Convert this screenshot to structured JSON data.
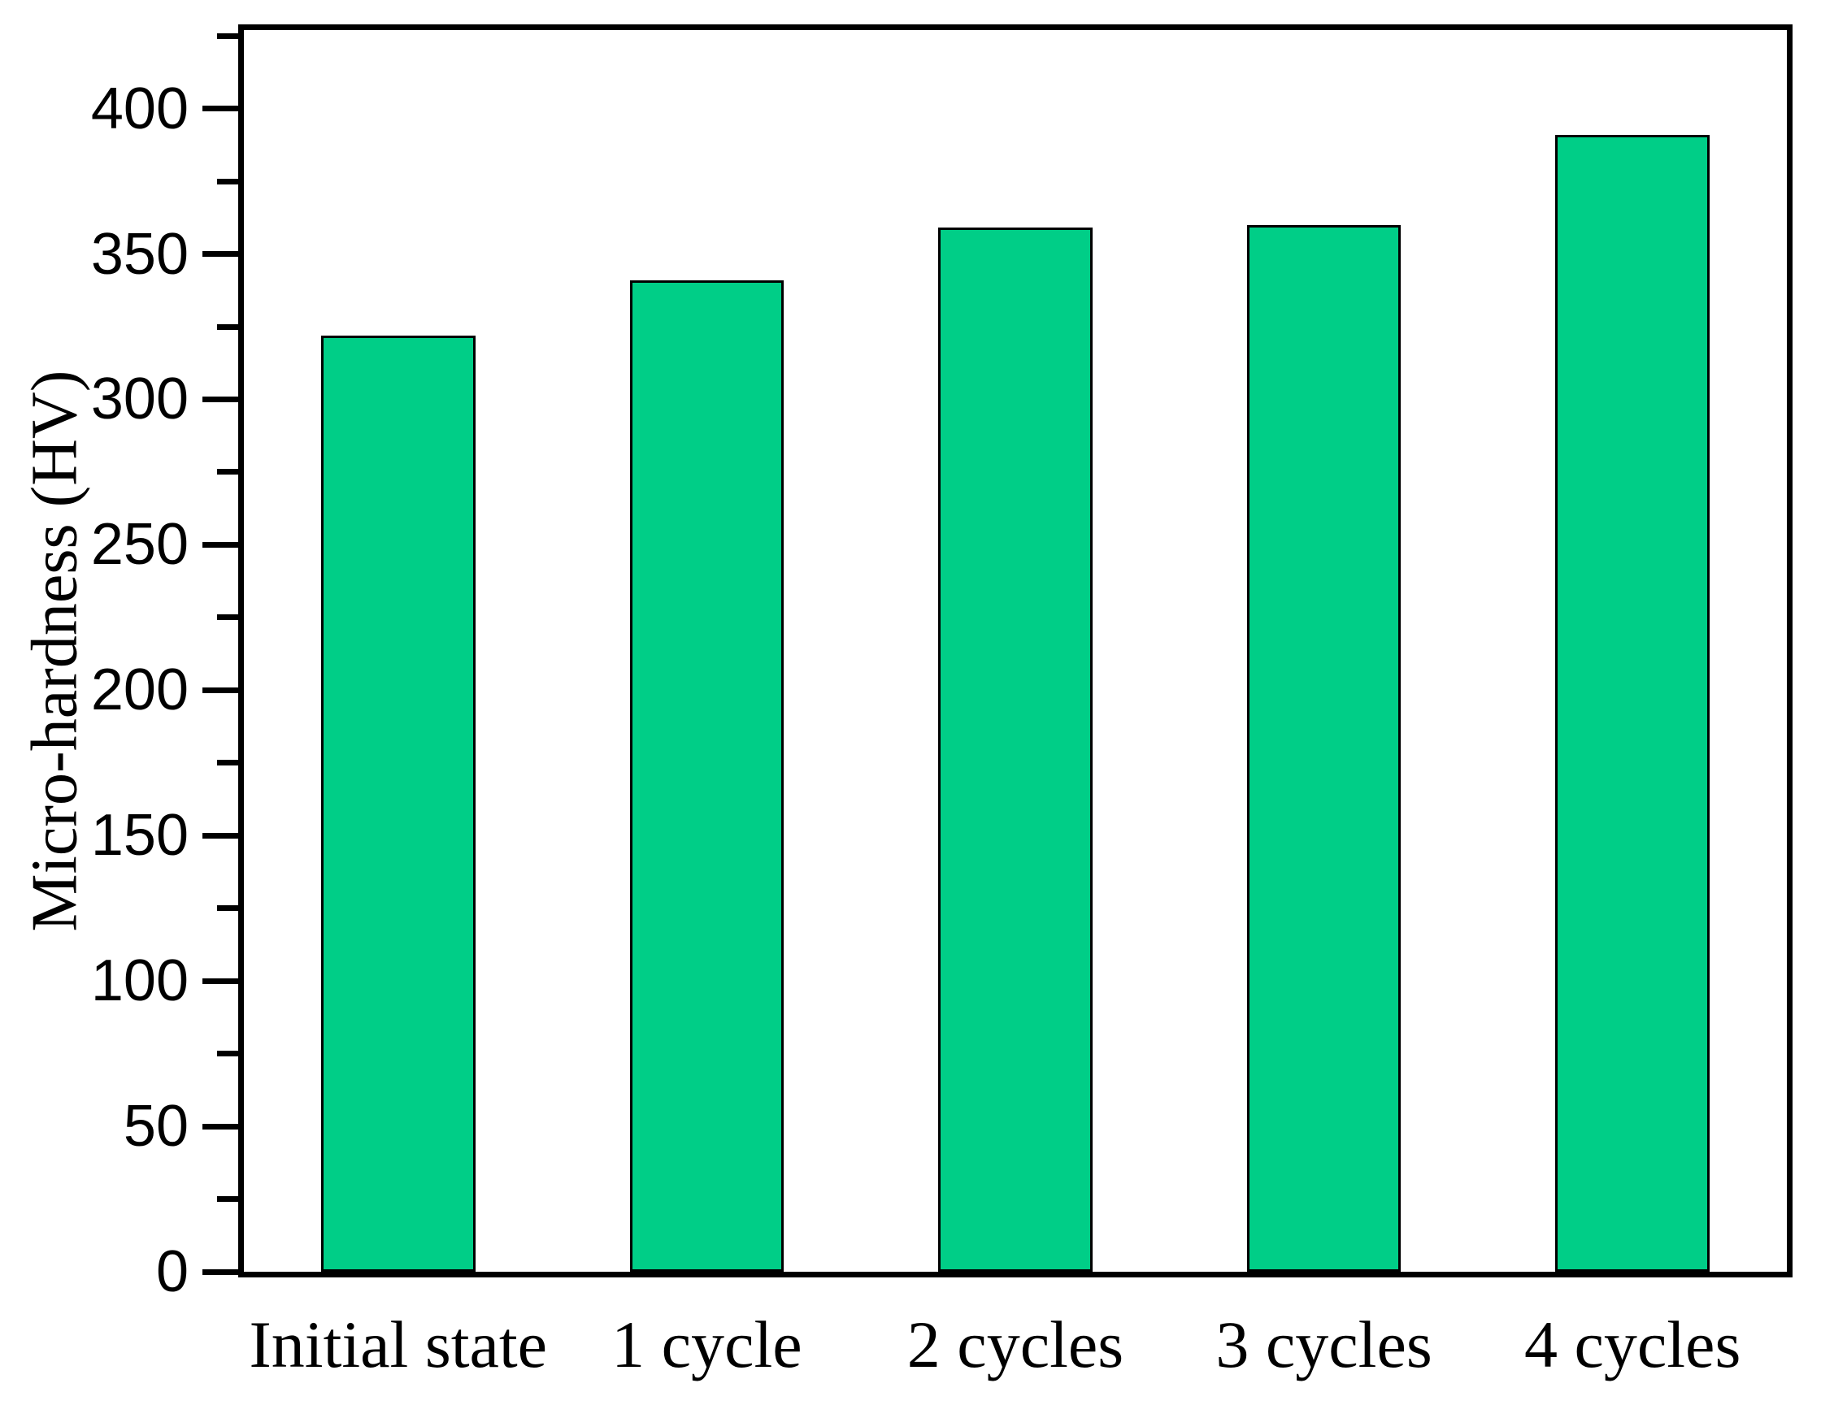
{
  "chart_data": {
    "type": "bar",
    "title": "",
    "xlabel": "",
    "ylabel": "Micro-hardness (HV)",
    "categories": [
      "Initial state",
      "1 cycle",
      "2 cycles",
      "3 cycles",
      "4 cycles"
    ],
    "values": [
      322,
      341,
      359,
      360,
      391
    ],
    "ylim": [
      0,
      427
    ],
    "yticks_major": [
      0,
      50,
      100,
      150,
      200,
      250,
      300,
      350,
      400
    ],
    "yticks_minor": [
      25,
      75,
      125,
      175,
      225,
      275,
      325,
      375,
      425
    ],
    "grid": false,
    "legend": null,
    "bar_fill_color": "#00CE87",
    "bar_border_color": "#000000",
    "axis_color": "#000000",
    "text_color": "#000000",
    "background_color": "#FFFFFF"
  }
}
